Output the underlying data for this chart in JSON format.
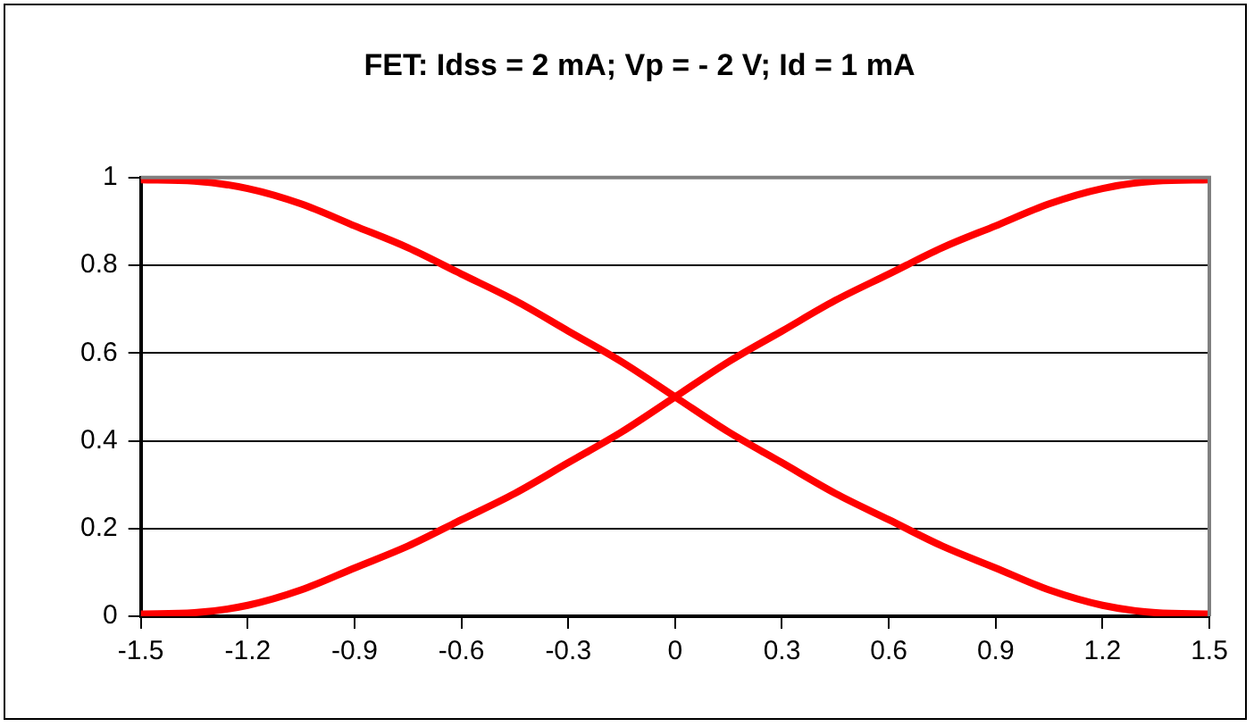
{
  "chart_data": {
    "type": "line",
    "title": "FET: Idss = 2 mA; Vp = - 2 V; Id = 1 mA",
    "x": [
      -1.5,
      -1.35,
      -1.2,
      -1.05,
      -0.9,
      -0.75,
      -0.6,
      -0.45,
      -0.3,
      -0.15,
      0,
      0.15,
      0.3,
      0.45,
      0.6,
      0.75,
      0.9,
      1.05,
      1.2,
      1.35,
      1.5
    ],
    "series": [
      {
        "color": "#ff0000",
        "values": [
          0.005,
          0.008,
          0.025,
          0.06,
          0.11,
          0.16,
          0.22,
          0.28,
          0.35,
          0.42,
          0.5,
          0.58,
          0.65,
          0.72,
          0.78,
          0.84,
          0.89,
          0.94,
          0.975,
          0.992,
          0.995
        ]
      },
      {
        "color": "#ff0000",
        "values": [
          0.995,
          0.992,
          0.975,
          0.94,
          0.89,
          0.84,
          0.78,
          0.72,
          0.65,
          0.58,
          0.5,
          0.42,
          0.35,
          0.28,
          0.22,
          0.16,
          0.11,
          0.06,
          0.025,
          0.008,
          0.005
        ]
      }
    ],
    "xlim": [
      -1.5,
      1.5
    ],
    "xticks": [
      -1.5,
      -1.2,
      -0.9,
      -0.6,
      -0.3,
      0,
      0.3,
      0.6,
      0.9,
      1.2,
      1.5
    ],
    "ylim": [
      0,
      1
    ],
    "yticks": [
      0,
      0.2,
      0.4,
      0.6,
      0.8,
      1
    ],
    "grid": "y",
    "legend": false,
    "marker": "none",
    "line_style": "solid"
  }
}
